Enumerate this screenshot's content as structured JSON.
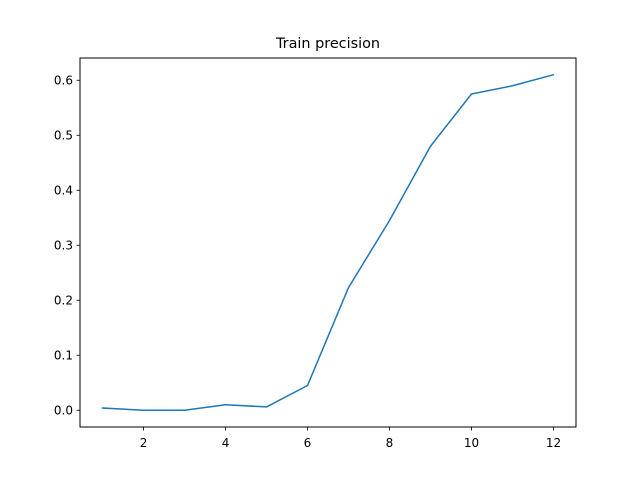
{
  "chart_data": {
    "type": "line",
    "title": "Train precision",
    "xlabel": "",
    "ylabel": "",
    "xlim": [
      0.45,
      12.55
    ],
    "ylim": [
      -0.0305,
      0.6405
    ],
    "x_ticks": [
      2,
      4,
      6,
      8,
      10,
      12
    ],
    "y_ticks": [
      0.0,
      0.1,
      0.2,
      0.3,
      0.4,
      0.5,
      0.6
    ],
    "x_tick_labels": [
      "2",
      "4",
      "6",
      "8",
      "10",
      "12"
    ],
    "y_tick_labels": [
      "0.0",
      "0.1",
      "0.2",
      "0.3",
      "0.4",
      "0.5",
      "0.6"
    ],
    "grid": false,
    "legend": "none",
    "series": [
      {
        "color": "#1f77b4",
        "x": [
          1,
          2,
          3,
          4,
          5,
          6,
          7,
          8,
          9,
          10,
          11,
          12
        ],
        "y": [
          0.004,
          0.0,
          0.0,
          0.01,
          0.006,
          0.045,
          0.223,
          0.345,
          0.48,
          0.575,
          0.59,
          0.61
        ]
      }
    ]
  }
}
